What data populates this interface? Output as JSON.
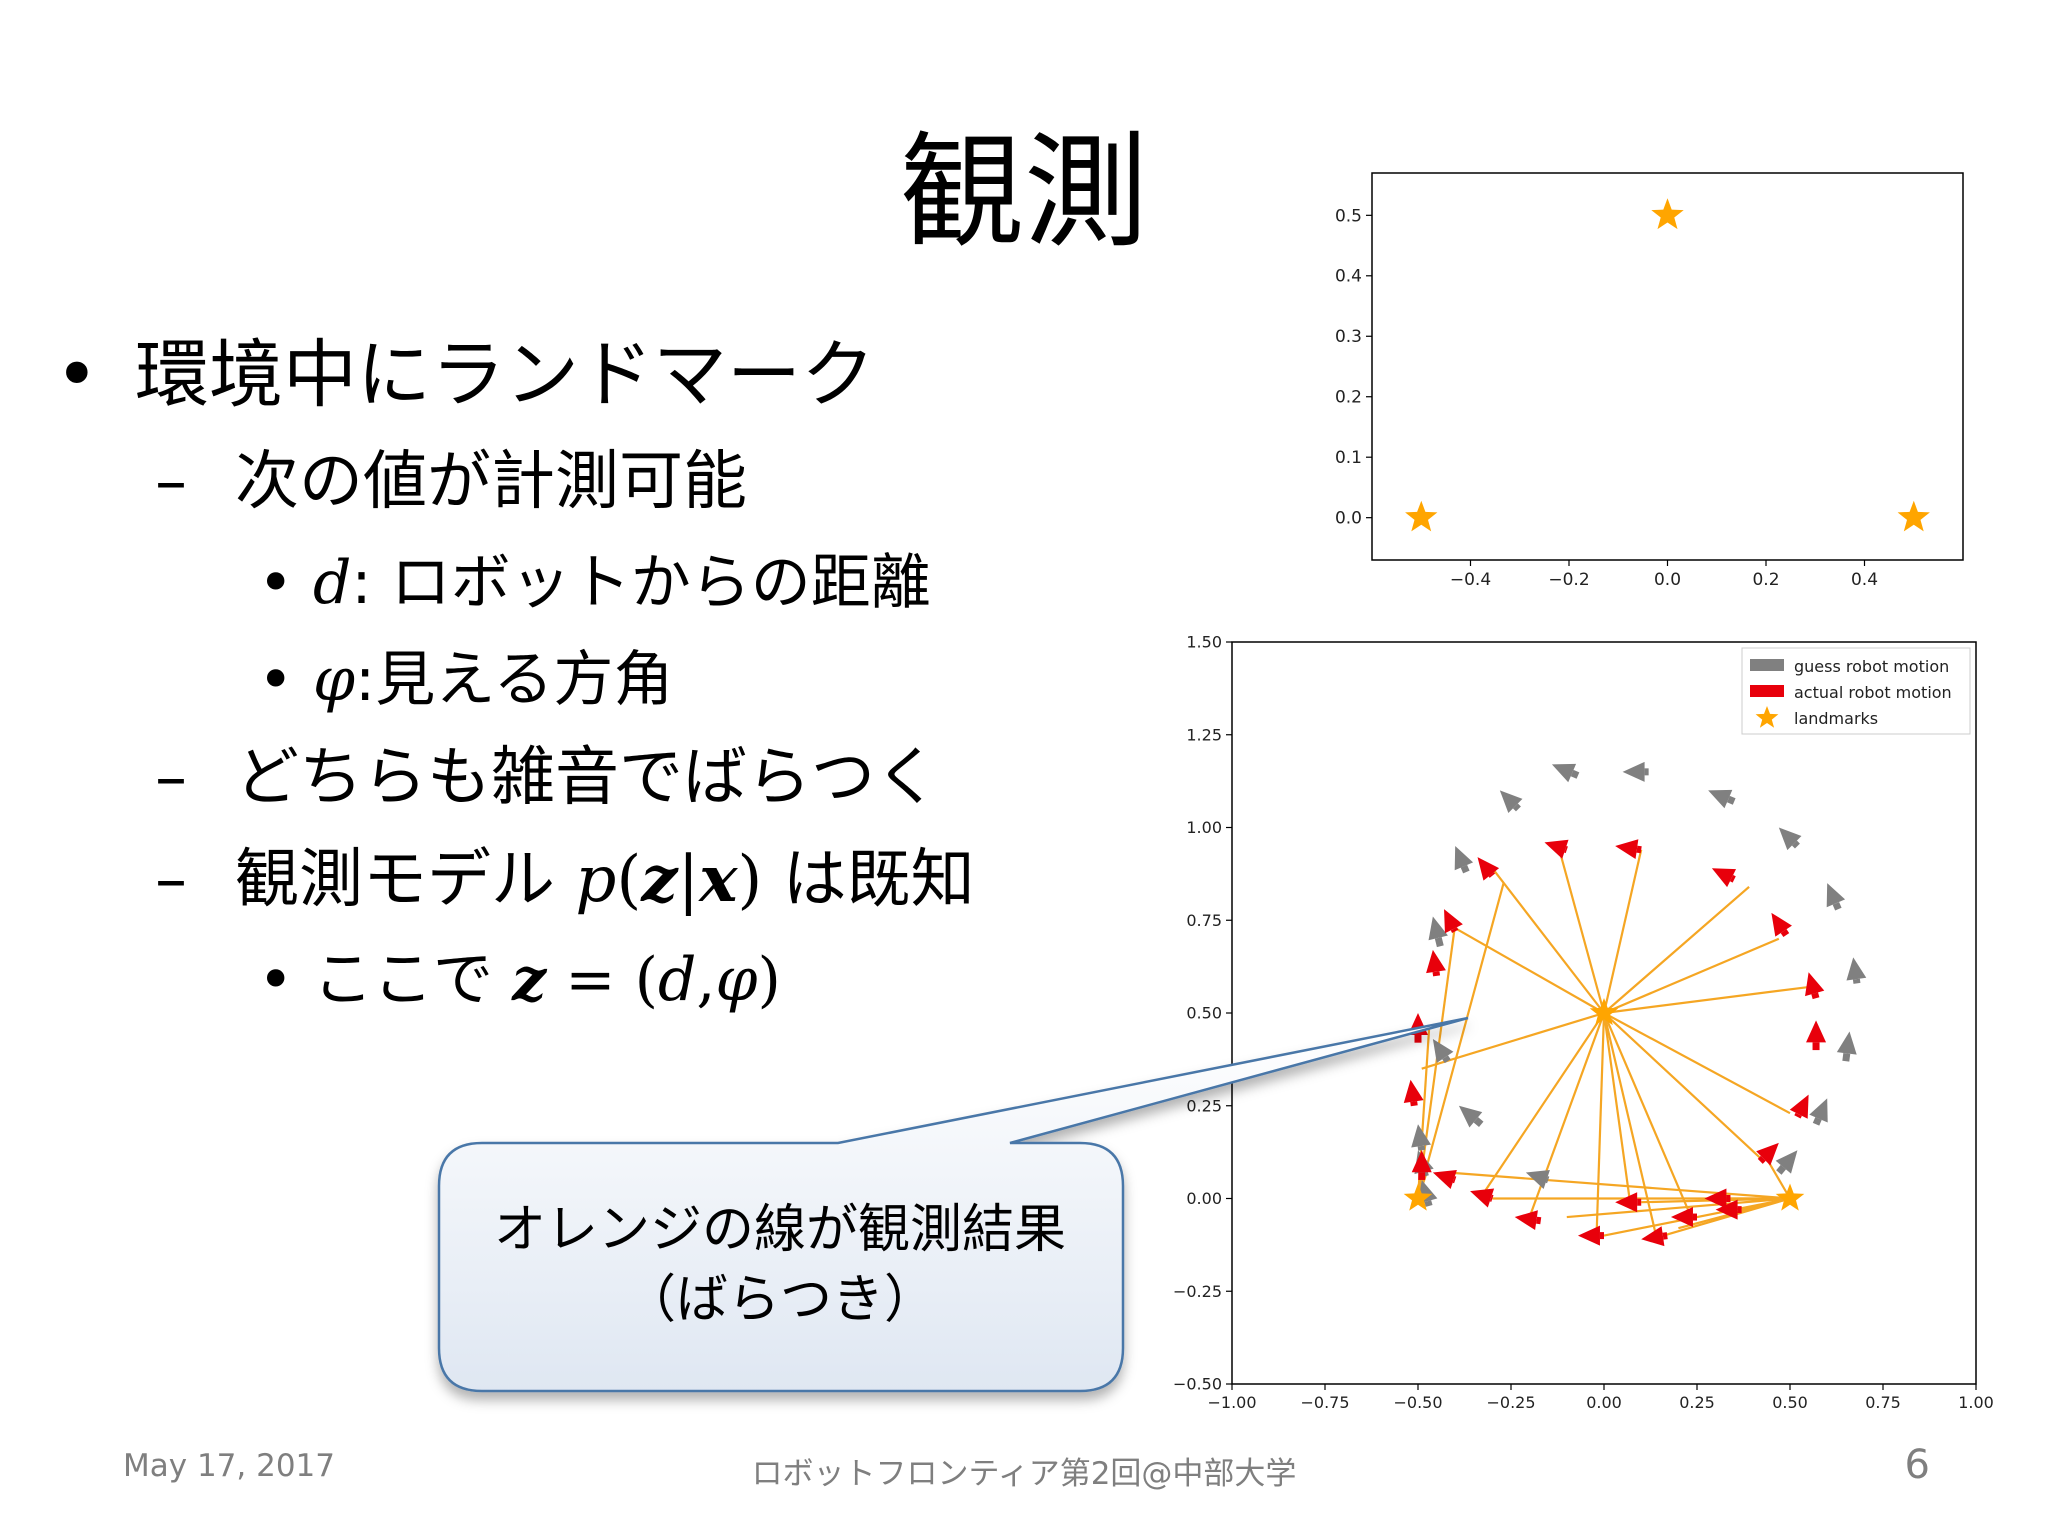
{
  "title": "観測",
  "bullets": {
    "b1": "環境中にランドマーク",
    "b1_1": "次の値が計測可能",
    "b1_1_1_sym": "d",
    "b1_1_1_text": ": ロボットからの距離",
    "b1_1_2_sym": "φ",
    "b1_1_2_text": ":見える方角",
    "b1_2": "どちらも雑音でばらつく",
    "b1_3_text": "観測モデル",
    "b1_3_p": "p",
    "b1_3_open": "(",
    "b1_3_z": "z",
    "b1_3_bar": "|",
    "b1_3_x": "x",
    "b1_3_close": ")",
    "b1_3_suffix": "は既知",
    "b1_3_1_text": "ここで",
    "b1_3_1_z": "z",
    "b1_3_1_eq": "= (",
    "b1_3_1_d": "d",
    "b1_3_1_comma": ",",
    "b1_3_1_phi": "φ",
    "b1_3_1_close": ")",
    "bullet_glyph": "•",
    "dash_glyph": "–"
  },
  "callout": {
    "line1": "オレンジの線が観測結果",
    "line2": "（ばらつき）"
  },
  "footer": {
    "date": "May 17, 2017",
    "event": "ロボットフロンティア第2回@中部大学",
    "page": "6"
  },
  "colors": {
    "landmark": "#FFA500",
    "guess": "#808080",
    "actual": "#E8000B",
    "observation": "#F5A623",
    "footer_text": "#7f7f7f",
    "callout_fill_top": "#ffffff",
    "callout_fill_bottom": "#dfe7f2",
    "callout_border": "#4a77a8"
  },
  "chart_data": [
    {
      "type": "scatter",
      "title": "",
      "xlabel": "",
      "ylabel": "",
      "xlim": [
        -0.6,
        0.6
      ],
      "ylim": [
        -0.07,
        0.57
      ],
      "xticks": [
        -0.4,
        -0.2,
        0.0,
        0.2,
        0.4
      ],
      "xtick_labels": [
        "−0.4",
        "−0.2",
        "0.0",
        "0.2",
        "0.4"
      ],
      "yticks": [
        0.0,
        0.1,
        0.2,
        0.3,
        0.4,
        0.5
      ],
      "ytick_labels": [
        "0.0",
        "0.1",
        "0.2",
        "0.3",
        "0.4",
        "0.5"
      ],
      "grid": false,
      "points": [
        {
          "x": -0.5,
          "y": 0.0
        },
        {
          "x": 0.0,
          "y": 0.5
        },
        {
          "x": 0.5,
          "y": 0.0
        }
      ]
    },
    {
      "type": "line",
      "title": "",
      "xlabel": "",
      "ylabel": "",
      "xlim": [
        -1.0,
        1.0
      ],
      "ylim": [
        -0.5,
        1.5
      ],
      "xticks": [
        -1.0,
        -0.75,
        -0.5,
        -0.25,
        0.0,
        0.25,
        0.5,
        0.75,
        1.0
      ],
      "xtick_labels": [
        "−1.00",
        "−0.75",
        "−0.50",
        "−0.25",
        "0.00",
        "0.25",
        "0.50",
        "0.75",
        "1.00"
      ],
      "yticks": [
        -0.5,
        -0.25,
        0.0,
        0.25,
        0.5,
        0.75,
        1.0,
        1.25,
        1.5
      ],
      "ytick_labels": [
        "−0.50",
        "−0.25",
        "0.00",
        "0.25",
        "0.50",
        "0.75",
        "1.00",
        "1.25",
        "1.50"
      ],
      "grid": false,
      "legend_position": "top-right",
      "legend": [
        "guess robot motion",
        "actual robot motion",
        "landmarks"
      ],
      "landmarks": [
        {
          "x": -0.5,
          "y": 0.0
        },
        {
          "x": 0.0,
          "y": 0.5
        },
        {
          "x": 0.5,
          "y": 0.0
        }
      ],
      "guess_arrows": [
        {
          "x": -0.47,
          "y": -0.02,
          "dx": -0.02,
          "dy": 0.07
        },
        {
          "x": -0.48,
          "y": 0.06,
          "dx": -0.02,
          "dy": 0.07
        },
        {
          "x": -0.49,
          "y": 0.13,
          "dx": -0.01,
          "dy": 0.07
        },
        {
          "x": -0.42,
          "y": 0.37,
          "dx": -0.04,
          "dy": 0.06
        },
        {
          "x": -0.33,
          "y": 0.2,
          "dx": -0.06,
          "dy": 0.05
        },
        {
          "x": -0.15,
          "y": 0.05,
          "dx": -0.06,
          "dy": 0.02
        },
        {
          "x": -0.44,
          "y": 0.68,
          "dx": -0.02,
          "dy": 0.08
        },
        {
          "x": -0.37,
          "y": 0.88,
          "dx": -0.03,
          "dy": 0.07
        },
        {
          "x": -0.23,
          "y": 1.05,
          "dx": -0.05,
          "dy": 0.05
        },
        {
          "x": -0.07,
          "y": 1.14,
          "dx": -0.07,
          "dy": 0.03
        },
        {
          "x": 0.12,
          "y": 1.15,
          "dx": -0.07,
          "dy": 0.0
        },
        {
          "x": 0.35,
          "y": 1.07,
          "dx": -0.07,
          "dy": 0.03
        },
        {
          "x": 0.52,
          "y": 0.95,
          "dx": -0.05,
          "dy": 0.05
        },
        {
          "x": 0.63,
          "y": 0.78,
          "dx": -0.03,
          "dy": 0.07
        },
        {
          "x": 0.68,
          "y": 0.58,
          "dx": -0.01,
          "dy": 0.07
        },
        {
          "x": 0.65,
          "y": 0.37,
          "dx": 0.01,
          "dy": 0.08
        },
        {
          "x": 0.57,
          "y": 0.2,
          "dx": 0.03,
          "dy": 0.07
        },
        {
          "x": 0.47,
          "y": 0.07,
          "dx": 0.05,
          "dy": 0.06
        }
      ],
      "actual_arrows": [
        {
          "x": -0.49,
          "y": 0.05,
          "dx": 0.0,
          "dy": 0.08
        },
        {
          "x": -0.51,
          "y": 0.25,
          "dx": -0.01,
          "dy": 0.07
        },
        {
          "x": -0.5,
          "y": 0.42,
          "dx": 0.0,
          "dy": 0.08
        },
        {
          "x": -0.45,
          "y": 0.6,
          "dx": -0.01,
          "dy": 0.07
        },
        {
          "x": -0.4,
          "y": 0.72,
          "dx": -0.03,
          "dy": 0.06
        },
        {
          "x": -0.3,
          "y": 0.87,
          "dx": -0.04,
          "dy": 0.05
        },
        {
          "x": -0.1,
          "y": 0.94,
          "dx": -0.06,
          "dy": 0.02
        },
        {
          "x": 0.1,
          "y": 0.94,
          "dx": -0.07,
          "dy": 0.01
        },
        {
          "x": 0.35,
          "y": 0.86,
          "dx": -0.06,
          "dy": 0.03
        },
        {
          "x": 0.49,
          "y": 0.71,
          "dx": -0.04,
          "dy": 0.06
        },
        {
          "x": 0.57,
          "y": 0.54,
          "dx": -0.02,
          "dy": 0.07
        },
        {
          "x": 0.57,
          "y": 0.4,
          "dx": 0.0,
          "dy": 0.08
        },
        {
          "x": 0.52,
          "y": 0.22,
          "dx": 0.03,
          "dy": 0.06
        },
        {
          "x": 0.42,
          "y": 0.1,
          "dx": 0.05,
          "dy": 0.05
        },
        {
          "x": -0.4,
          "y": 0.05,
          "dx": -0.06,
          "dy": 0.02
        },
        {
          "x": -0.3,
          "y": 0.0,
          "dx": -0.06,
          "dy": 0.02
        },
        {
          "x": -0.17,
          "y": -0.06,
          "dx": -0.07,
          "dy": 0.01
        },
        {
          "x": 0.0,
          "y": -0.1,
          "dx": -0.07,
          "dy": 0.0
        },
        {
          "x": 0.17,
          "y": -0.1,
          "dx": -0.07,
          "dy": -0.01
        },
        {
          "x": 0.25,
          "y": -0.05,
          "dx": -0.07,
          "dy": 0.0
        },
        {
          "x": 0.34,
          "y": 0.0,
          "dx": -0.07,
          "dy": 0.0
        },
        {
          "x": 0.1,
          "y": -0.01,
          "dx": -0.07,
          "dy": 0.0
        },
        {
          "x": 0.37,
          "y": -0.03,
          "dx": -0.07,
          "dy": 0.0
        }
      ],
      "observation_segments": [
        {
          "x1": -0.5,
          "y1": 0.0,
          "x2": -0.47,
          "y2": 0.09
        },
        {
          "x1": -0.5,
          "y1": 0.0,
          "x2": -0.4,
          "y2": 0.74
        },
        {
          "x1": -0.5,
          "y1": 0.0,
          "x2": -0.27,
          "y2": 0.85
        },
        {
          "x1": -0.5,
          "y1": 0.0,
          "x2": -0.47,
          "y2": 0.46
        },
        {
          "x1": 0.0,
          "y1": 0.5,
          "x2": -0.49,
          "y2": 0.35
        },
        {
          "x1": 0.0,
          "y1": 0.5,
          "x2": -0.42,
          "y2": 0.74
        },
        {
          "x1": 0.0,
          "y1": 0.5,
          "x2": -0.3,
          "y2": 0.89
        },
        {
          "x1": 0.0,
          "y1": 0.5,
          "x2": -0.12,
          "y2": 0.94
        },
        {
          "x1": 0.0,
          "y1": 0.5,
          "x2": 0.1,
          "y2": 0.94
        },
        {
          "x1": 0.0,
          "y1": 0.5,
          "x2": 0.39,
          "y2": 0.84
        },
        {
          "x1": 0.0,
          "y1": 0.5,
          "x2": 0.47,
          "y2": 0.7
        },
        {
          "x1": 0.0,
          "y1": 0.5,
          "x2": 0.55,
          "y2": 0.57
        },
        {
          "x1": 0.0,
          "y1": 0.5,
          "x2": 0.5,
          "y2": 0.23
        },
        {
          "x1": 0.0,
          "y1": 0.5,
          "x2": 0.43,
          "y2": 0.1
        },
        {
          "x1": 0.0,
          "y1": 0.5,
          "x2": -0.32,
          "y2": 0.02
        },
        {
          "x1": 0.0,
          "y1": 0.5,
          "x2": -0.2,
          "y2": -0.05
        },
        {
          "x1": 0.0,
          "y1": 0.5,
          "x2": -0.02,
          "y2": -0.1
        },
        {
          "x1": 0.0,
          "y1": 0.5,
          "x2": 0.14,
          "y2": -0.1
        },
        {
          "x1": 0.0,
          "y1": 0.5,
          "x2": 0.23,
          "y2": -0.04
        },
        {
          "x1": 0.0,
          "y1": 0.5,
          "x2": 0.07,
          "y2": -0.01
        },
        {
          "x1": 0.5,
          "y1": 0.0,
          "x2": -0.42,
          "y2": 0.07
        },
        {
          "x1": 0.5,
          "y1": 0.0,
          "x2": -0.3,
          "y2": 0.0
        },
        {
          "x1": 0.5,
          "y1": 0.0,
          "x2": -0.1,
          "y2": -0.05
        },
        {
          "x1": 0.5,
          "y1": 0.0,
          "x2": 0.0,
          "y2": -0.1
        },
        {
          "x1": 0.5,
          "y1": 0.0,
          "x2": 0.16,
          "y2": -0.1
        },
        {
          "x1": 0.5,
          "y1": 0.0,
          "x2": 0.3,
          "y2": 0.0
        },
        {
          "x1": 0.5,
          "y1": 0.0,
          "x2": 0.37,
          "y2": -0.03
        },
        {
          "x1": 0.5,
          "y1": 0.0,
          "x2": 0.1,
          "y2": -0.01
        },
        {
          "x1": 0.5,
          "y1": 0.0,
          "x2": 0.43,
          "y2": 0.12
        },
        {
          "x1": 0.5,
          "y1": 0.0,
          "x2": 0.2,
          "y2": -0.08
        }
      ]
    }
  ]
}
